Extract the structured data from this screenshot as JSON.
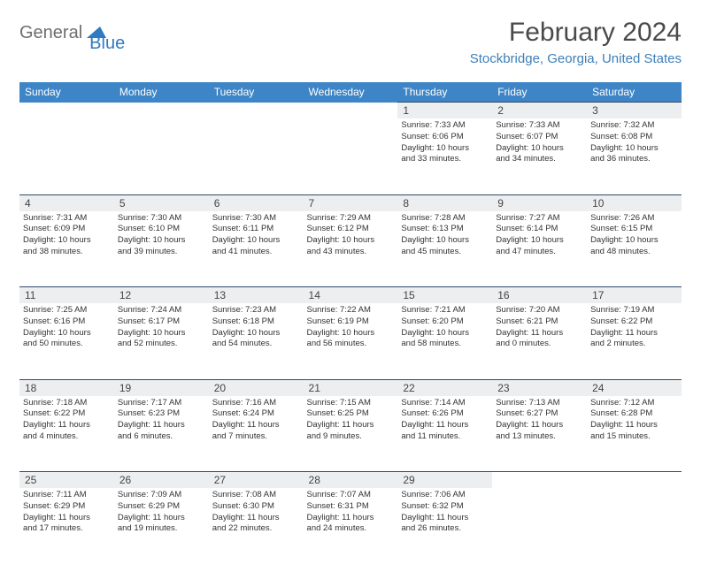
{
  "logo": {
    "general": "General",
    "blue": "Blue"
  },
  "title": "February 2024",
  "location": "Stockbridge, Georgia, United States",
  "colors": {
    "header_bg": "#3d85c6",
    "header_text": "#ffffff",
    "daynum_bg": "#eceef0",
    "daynum_border": "#2e4a6b",
    "location_color": "#3d7fb8",
    "logo_gray": "#6e6e6e",
    "logo_blue": "#2f7ac0"
  },
  "daynames": [
    "Sunday",
    "Monday",
    "Tuesday",
    "Wednesday",
    "Thursday",
    "Friday",
    "Saturday"
  ],
  "weeks": [
    {
      "nums": [
        "",
        "",
        "",
        "",
        "1",
        "2",
        "3"
      ],
      "cells": [
        null,
        null,
        null,
        null,
        {
          "sr": "Sunrise: 7:33 AM",
          "ss": "Sunset: 6:06 PM",
          "d1": "Daylight: 10 hours",
          "d2": "and 33 minutes."
        },
        {
          "sr": "Sunrise: 7:33 AM",
          "ss": "Sunset: 6:07 PM",
          "d1": "Daylight: 10 hours",
          "d2": "and 34 minutes."
        },
        {
          "sr": "Sunrise: 7:32 AM",
          "ss": "Sunset: 6:08 PM",
          "d1": "Daylight: 10 hours",
          "d2": "and 36 minutes."
        }
      ]
    },
    {
      "nums": [
        "4",
        "5",
        "6",
        "7",
        "8",
        "9",
        "10"
      ],
      "cells": [
        {
          "sr": "Sunrise: 7:31 AM",
          "ss": "Sunset: 6:09 PM",
          "d1": "Daylight: 10 hours",
          "d2": "and 38 minutes."
        },
        {
          "sr": "Sunrise: 7:30 AM",
          "ss": "Sunset: 6:10 PM",
          "d1": "Daylight: 10 hours",
          "d2": "and 39 minutes."
        },
        {
          "sr": "Sunrise: 7:30 AM",
          "ss": "Sunset: 6:11 PM",
          "d1": "Daylight: 10 hours",
          "d2": "and 41 minutes."
        },
        {
          "sr": "Sunrise: 7:29 AM",
          "ss": "Sunset: 6:12 PM",
          "d1": "Daylight: 10 hours",
          "d2": "and 43 minutes."
        },
        {
          "sr": "Sunrise: 7:28 AM",
          "ss": "Sunset: 6:13 PM",
          "d1": "Daylight: 10 hours",
          "d2": "and 45 minutes."
        },
        {
          "sr": "Sunrise: 7:27 AM",
          "ss": "Sunset: 6:14 PM",
          "d1": "Daylight: 10 hours",
          "d2": "and 47 minutes."
        },
        {
          "sr": "Sunrise: 7:26 AM",
          "ss": "Sunset: 6:15 PM",
          "d1": "Daylight: 10 hours",
          "d2": "and 48 minutes."
        }
      ]
    },
    {
      "nums": [
        "11",
        "12",
        "13",
        "14",
        "15",
        "16",
        "17"
      ],
      "cells": [
        {
          "sr": "Sunrise: 7:25 AM",
          "ss": "Sunset: 6:16 PM",
          "d1": "Daylight: 10 hours",
          "d2": "and 50 minutes."
        },
        {
          "sr": "Sunrise: 7:24 AM",
          "ss": "Sunset: 6:17 PM",
          "d1": "Daylight: 10 hours",
          "d2": "and 52 minutes."
        },
        {
          "sr": "Sunrise: 7:23 AM",
          "ss": "Sunset: 6:18 PM",
          "d1": "Daylight: 10 hours",
          "d2": "and 54 minutes."
        },
        {
          "sr": "Sunrise: 7:22 AM",
          "ss": "Sunset: 6:19 PM",
          "d1": "Daylight: 10 hours",
          "d2": "and 56 minutes."
        },
        {
          "sr": "Sunrise: 7:21 AM",
          "ss": "Sunset: 6:20 PM",
          "d1": "Daylight: 10 hours",
          "d2": "and 58 minutes."
        },
        {
          "sr": "Sunrise: 7:20 AM",
          "ss": "Sunset: 6:21 PM",
          "d1": "Daylight: 11 hours",
          "d2": "and 0 minutes."
        },
        {
          "sr": "Sunrise: 7:19 AM",
          "ss": "Sunset: 6:22 PM",
          "d1": "Daylight: 11 hours",
          "d2": "and 2 minutes."
        }
      ]
    },
    {
      "nums": [
        "18",
        "19",
        "20",
        "21",
        "22",
        "23",
        "24"
      ],
      "cells": [
        {
          "sr": "Sunrise: 7:18 AM",
          "ss": "Sunset: 6:22 PM",
          "d1": "Daylight: 11 hours",
          "d2": "and 4 minutes."
        },
        {
          "sr": "Sunrise: 7:17 AM",
          "ss": "Sunset: 6:23 PM",
          "d1": "Daylight: 11 hours",
          "d2": "and 6 minutes."
        },
        {
          "sr": "Sunrise: 7:16 AM",
          "ss": "Sunset: 6:24 PM",
          "d1": "Daylight: 11 hours",
          "d2": "and 7 minutes."
        },
        {
          "sr": "Sunrise: 7:15 AM",
          "ss": "Sunset: 6:25 PM",
          "d1": "Daylight: 11 hours",
          "d2": "and 9 minutes."
        },
        {
          "sr": "Sunrise: 7:14 AM",
          "ss": "Sunset: 6:26 PM",
          "d1": "Daylight: 11 hours",
          "d2": "and 11 minutes."
        },
        {
          "sr": "Sunrise: 7:13 AM",
          "ss": "Sunset: 6:27 PM",
          "d1": "Daylight: 11 hours",
          "d2": "and 13 minutes."
        },
        {
          "sr": "Sunrise: 7:12 AM",
          "ss": "Sunset: 6:28 PM",
          "d1": "Daylight: 11 hours",
          "d2": "and 15 minutes."
        }
      ]
    },
    {
      "nums": [
        "25",
        "26",
        "27",
        "28",
        "29",
        "",
        ""
      ],
      "cells": [
        {
          "sr": "Sunrise: 7:11 AM",
          "ss": "Sunset: 6:29 PM",
          "d1": "Daylight: 11 hours",
          "d2": "and 17 minutes."
        },
        {
          "sr": "Sunrise: 7:09 AM",
          "ss": "Sunset: 6:29 PM",
          "d1": "Daylight: 11 hours",
          "d2": "and 19 minutes."
        },
        {
          "sr": "Sunrise: 7:08 AM",
          "ss": "Sunset: 6:30 PM",
          "d1": "Daylight: 11 hours",
          "d2": "and 22 minutes."
        },
        {
          "sr": "Sunrise: 7:07 AM",
          "ss": "Sunset: 6:31 PM",
          "d1": "Daylight: 11 hours",
          "d2": "and 24 minutes."
        },
        {
          "sr": "Sunrise: 7:06 AM",
          "ss": "Sunset: 6:32 PM",
          "d1": "Daylight: 11 hours",
          "d2": "and 26 minutes."
        },
        null,
        null
      ]
    }
  ]
}
